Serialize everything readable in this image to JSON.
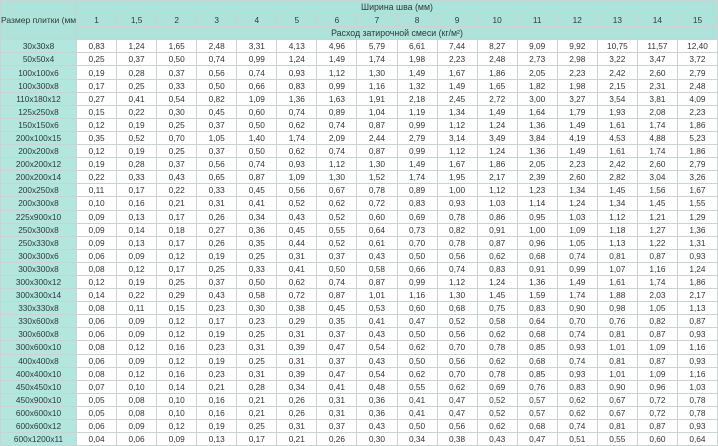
{
  "header": {
    "size_label": "Размер плитки (мм)",
    "width_label": "Ширина шва (мм)",
    "consumption_label": "Расход затирочной смеси (кг/м²)",
    "columns": [
      "1",
      "1,5",
      "2",
      "3",
      "4",
      "5",
      "6",
      "7",
      "8",
      "9",
      "10",
      "11",
      "12",
      "13",
      "14",
      "15"
    ]
  },
  "colors": {
    "header_bg": "#aee3dc",
    "size_col_bg": "#b3e6df"
  },
  "rows": [
    {
      "size": "30x30x8",
      "values": [
        "0,83",
        "1,24",
        "1,65",
        "2,48",
        "3,31",
        "4,13",
        "4,96",
        "5,79",
        "6,61",
        "7,44",
        "8,27",
        "9,09",
        "9,92",
        "10,75",
        "11,57",
        "12,40"
      ]
    },
    {
      "size": "50x50x4",
      "values": [
        "0,25",
        "0,37",
        "0,50",
        "0,74",
        "0,99",
        "1,24",
        "1,49",
        "1,74",
        "1,98",
        "2,23",
        "2,48",
        "2,73",
        "2,98",
        "3,22",
        "3,47",
        "3,72"
      ]
    },
    {
      "size": "100x100x6",
      "values": [
        "0,19",
        "0,28",
        "0,37",
        "0,56",
        "0,74",
        "0,93",
        "1,12",
        "1,30",
        "1,49",
        "1,67",
        "1,86",
        "2,05",
        "2,23",
        "2,42",
        "2,60",
        "2,79"
      ]
    },
    {
      "size": "100x300x8",
      "values": [
        "0,17",
        "0,25",
        "0,33",
        "0,50",
        "0,66",
        "0,83",
        "0,99",
        "1,16",
        "1,32",
        "1,49",
        "1,65",
        "1,82",
        "1,98",
        "2,15",
        "2,31",
        "2,48"
      ]
    },
    {
      "size": "110x180x12",
      "values": [
        "0,27",
        "0,41",
        "0,54",
        "0,82",
        "1,09",
        "1,36",
        "1,63",
        "1,91",
        "2,18",
        "2,45",
        "2,72",
        "3,00",
        "3,27",
        "3,54",
        "3,81",
        "4,09"
      ]
    },
    {
      "size": "125x250x8",
      "values": [
        "0,15",
        "0,22",
        "0,30",
        "0,45",
        "0,60",
        "0,74",
        "0,89",
        "1,04",
        "1,19",
        "1,34",
        "1,49",
        "1,64",
        "1,79",
        "1,93",
        "2,08",
        "2,23"
      ]
    },
    {
      "size": "150x150x6",
      "values": [
        "0,12",
        "0,19",
        "0,25",
        "0,37",
        "0,50",
        "0,62",
        "0,74",
        "0,87",
        "0,99",
        "1,12",
        "1,24",
        "1,36",
        "1,49",
        "1,61",
        "1,74",
        "1,86"
      ]
    },
    {
      "size": "200x100x15",
      "values": [
        "0,35",
        "0,52",
        "0,70",
        "1,05",
        "1,40",
        "1,74",
        "2,09",
        "2,44",
        "2,79",
        "3,14",
        "3,49",
        "3,84",
        "4,19",
        "4,53",
        "4,88",
        "5,23"
      ]
    },
    {
      "size": "200x200x8",
      "values": [
        "0,12",
        "0,19",
        "0,25",
        "0,37",
        "0,50",
        "0,62",
        "0,74",
        "0,87",
        "0,99",
        "1,12",
        "1,24",
        "1,36",
        "1,49",
        "1,61",
        "1,74",
        "1,86"
      ]
    },
    {
      "size": "200x200x12",
      "values": [
        "0,19",
        "0,28",
        "0,37",
        "0,56",
        "0,74",
        "0,93",
        "1,12",
        "1,30",
        "1,49",
        "1,67",
        "1,86",
        "2,05",
        "2,23",
        "2,42",
        "2,60",
        "2,79"
      ]
    },
    {
      "size": "200x200x14",
      "values": [
        "0,22",
        "0,33",
        "0,43",
        "0,65",
        "0,87",
        "1,09",
        "1,30",
        "1,52",
        "1,74",
        "1,95",
        "2,17",
        "2,39",
        "2,60",
        "2,82",
        "3,04",
        "3,26"
      ]
    },
    {
      "size": "200x250x8",
      "values": [
        "0,11",
        "0,17",
        "0,22",
        "0,33",
        "0,45",
        "0,56",
        "0,67",
        "0,78",
        "0,89",
        "1,00",
        "1,12",
        "1,23",
        "1,34",
        "1,45",
        "1,56",
        "1,67"
      ]
    },
    {
      "size": "200x300x8",
      "values": [
        "0,10",
        "0,16",
        "0,21",
        "0,31",
        "0,41",
        "0,52",
        "0,62",
        "0,72",
        "0,83",
        "0,93",
        "1,03",
        "1,14",
        "1,24",
        "1,34",
        "1,45",
        "1,55"
      ]
    },
    {
      "size": "225x900x10",
      "values": [
        "0,09",
        "0,13",
        "0,17",
        "0,26",
        "0,34",
        "0,43",
        "0,52",
        "0,60",
        "0,69",
        "0,78",
        "0,86",
        "0,95",
        "1,03",
        "1,12",
        "1,21",
        "1,29"
      ]
    },
    {
      "size": "250x300x8",
      "values": [
        "0,09",
        "0,14",
        "0,18",
        "0,27",
        "0,36",
        "0,45",
        "0,55",
        "0,64",
        "0,73",
        "0,82",
        "0,91",
        "1,00",
        "1,09",
        "1,18",
        "1,27",
        "1,36"
      ]
    },
    {
      "size": "250x330x8",
      "values": [
        "0,09",
        "0,13",
        "0,17",
        "0,26",
        "0,35",
        "0,44",
        "0,52",
        "0,61",
        "0,70",
        "0,78",
        "0,87",
        "0,96",
        "1,05",
        "1,13",
        "1,22",
        "1,31"
      ]
    },
    {
      "size": "300x300x6",
      "values": [
        "0,06",
        "0,09",
        "0,12",
        "0,19",
        "0,25",
        "0,31",
        "0,37",
        "0,43",
        "0,50",
        "0,56",
        "0,62",
        "0,68",
        "0,74",
        "0,81",
        "0,87",
        "0,93"
      ]
    },
    {
      "size": "300x300x8",
      "values": [
        "0,08",
        "0,12",
        "0,17",
        "0,25",
        "0,33",
        "0,41",
        "0,50",
        "0,58",
        "0,66",
        "0,74",
        "0,83",
        "0,91",
        "0,99",
        "1,07",
        "1,16",
        "1,24"
      ]
    },
    {
      "size": "300x300x12",
      "values": [
        "0,12",
        "0,19",
        "0,25",
        "0,37",
        "0,50",
        "0,62",
        "0,74",
        "0,87",
        "0,99",
        "1,12",
        "1,24",
        "1,36",
        "1,49",
        "1,61",
        "1,74",
        "1,86"
      ]
    },
    {
      "size": "300x300x14",
      "values": [
        "0,14",
        "0,22",
        "0,29",
        "0,43",
        "0,58",
        "0,72",
        "0,87",
        "1,01",
        "1,16",
        "1,30",
        "1,45",
        "1,59",
        "1,74",
        "1,88",
        "2,03",
        "2,17"
      ]
    },
    {
      "size": "330x330x8",
      "values": [
        "0,08",
        "0,11",
        "0,15",
        "0,23",
        "0,30",
        "0,38",
        "0,45",
        "0,53",
        "0,60",
        "0,68",
        "0,75",
        "0,83",
        "0,90",
        "0,98",
        "1,05",
        "1,13"
      ]
    },
    {
      "size": "330x600x8",
      "values": [
        "0,06",
        "0,09",
        "0,12",
        "0,17",
        "0,23",
        "0,29",
        "0,35",
        "0,41",
        "0,47",
        "0,52",
        "0,58",
        "0,64",
        "0,70",
        "0,76",
        "0,82",
        "0,87"
      ]
    },
    {
      "size": "300x600x8",
      "values": [
        "0,06",
        "0,09",
        "0,12",
        "0,19",
        "0,25",
        "0,31",
        "0,37",
        "0,43",
        "0,50",
        "0,56",
        "0,62",
        "0,68",
        "0,74",
        "0,81",
        "0,87",
        "0,93"
      ]
    },
    {
      "size": "300x600x10",
      "values": [
        "0,08",
        "0,12",
        "0,16",
        "0,23",
        "0,31",
        "0,39",
        "0,47",
        "0,54",
        "0,62",
        "0,70",
        "0,78",
        "0,85",
        "0,93",
        "1,01",
        "1,09",
        "1,16"
      ]
    },
    {
      "size": "400x400x8",
      "values": [
        "0,06",
        "0,09",
        "0,12",
        "0,19",
        "0,25",
        "0,31",
        "0,37",
        "0,43",
        "0,50",
        "0,56",
        "0,62",
        "0,68",
        "0,74",
        "0,81",
        "0,87",
        "0,93"
      ]
    },
    {
      "size": "400x400x10",
      "values": [
        "0,08",
        "0,12",
        "0,16",
        "0,23",
        "0,31",
        "0,39",
        "0,47",
        "0,54",
        "0,62",
        "0,70",
        "0,78",
        "0,85",
        "0,93",
        "1,01",
        "1,09",
        "1,16"
      ]
    },
    {
      "size": "450x450x10",
      "values": [
        "0,07",
        "0,10",
        "0,14",
        "0,21",
        "0,28",
        "0,34",
        "0,41",
        "0,48",
        "0,55",
        "0,62",
        "0,69",
        "0,76",
        "0,83",
        "0,90",
        "0,96",
        "1,03"
      ]
    },
    {
      "size": "450x900x10",
      "values": [
        "0,05",
        "0,08",
        "0,10",
        "0,16",
        "0,21",
        "0,26",
        "0,31",
        "0,36",
        "0,41",
        "0,47",
        "0,52",
        "0,57",
        "0,62",
        "0,67",
        "0,72",
        "0,78"
      ]
    },
    {
      "size": "600x600x10",
      "values": [
        "0,05",
        "0,08",
        "0,10",
        "0,16",
        "0,21",
        "0,26",
        "0,31",
        "0,36",
        "0,41",
        "0,47",
        "0,52",
        "0,57",
        "0,62",
        "0,67",
        "0,72",
        "0,78"
      ]
    },
    {
      "size": "600x600x12",
      "values": [
        "0,06",
        "0,09",
        "0,12",
        "0,19",
        "0,25",
        "0,31",
        "0,37",
        "0,43",
        "0,50",
        "0,56",
        "0,62",
        "0,68",
        "0,74",
        "0,81",
        "0,87",
        "0,93"
      ]
    },
    {
      "size": "600x1200x11",
      "values": [
        "0,04",
        "0,06",
        "0,09",
        "0,13",
        "0,17",
        "0,21",
        "0,26",
        "0,30",
        "0,34",
        "0,38",
        "0,43",
        "0,47",
        "0,51",
        "0,55",
        "0,60",
        "0,64"
      ]
    }
  ]
}
